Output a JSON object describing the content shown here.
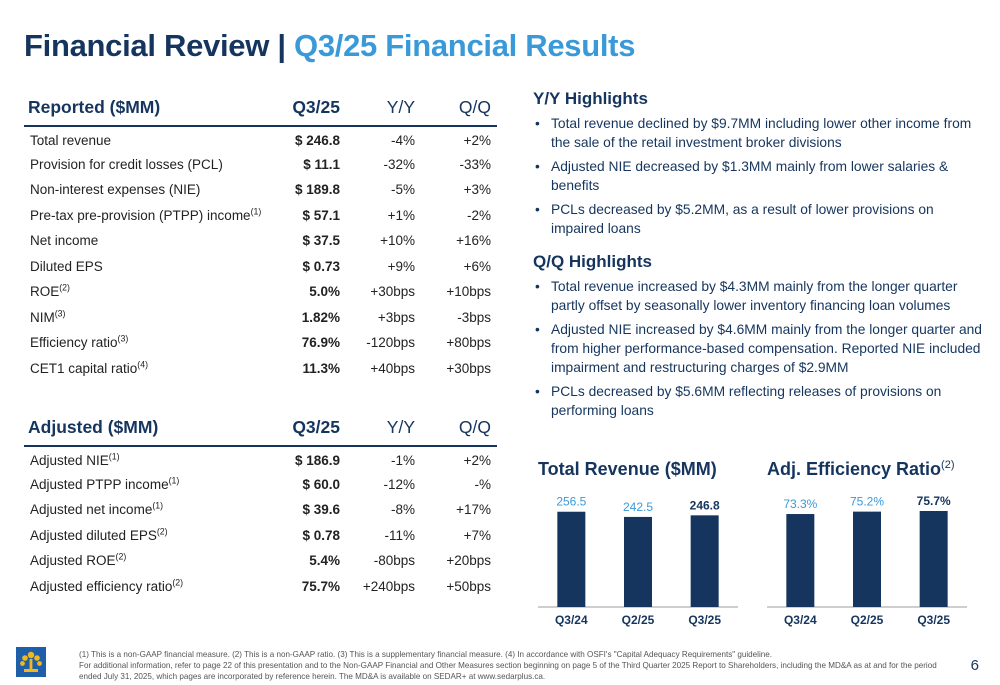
{
  "title": {
    "main": "Financial Review | ",
    "sub": "Q3/25 Financial Results"
  },
  "reported": {
    "header": [
      "Reported ($MM)",
      "Q3/25",
      "Y/Y",
      "Q/Q"
    ],
    "rows": [
      {
        "label": "Total revenue",
        "sup": "",
        "value": "$ 246.8",
        "yy": "-4%",
        "qq": "+2%"
      },
      {
        "label": "Provision for credit losses (PCL)",
        "sup": "",
        "value": "$ 11.1",
        "yy": "-32%",
        "qq": "-33%"
      },
      {
        "label": "Non-interest expenses (NIE)",
        "sup": "",
        "value": "$ 189.8",
        "yy": "-5%",
        "qq": "+3%"
      },
      {
        "label": "Pre-tax pre-provision (PTPP) income",
        "sup": "(1)",
        "value": "$ 57.1",
        "yy": "+1%",
        "qq": "-2%"
      },
      {
        "label": "Net income",
        "sup": "",
        "value": "$ 37.5",
        "yy": "+10%",
        "qq": "+16%"
      },
      {
        "label": "Diluted EPS",
        "sup": "",
        "value": "$ 0.73",
        "yy": "+9%",
        "qq": "+6%"
      },
      {
        "label": "ROE",
        "sup": "(2)",
        "value": "5.0%",
        "yy": "+30bps",
        "qq": "+10bps"
      },
      {
        "label": "NIM",
        "sup": "(3)",
        "value": "1.82%",
        "yy": "+3bps",
        "qq": "-3bps"
      },
      {
        "label": "Efficiency ratio",
        "sup": "(3)",
        "value": "76.9%",
        "yy": "-120bps",
        "qq": "+80bps"
      },
      {
        "label": "CET1 capital ratio",
        "sup": "(4)",
        "value": "11.3%",
        "yy": "+40bps",
        "qq": "+30bps"
      }
    ]
  },
  "adjusted": {
    "header": [
      "Adjusted ($MM)",
      "Q3/25",
      "Y/Y",
      "Q/Q"
    ],
    "rows": [
      {
        "label": "Adjusted NIE",
        "sup": "(1)",
        "value": "$ 186.9",
        "yy": "-1%",
        "qq": "+2%"
      },
      {
        "label": "Adjusted PTPP income",
        "sup": "(1)",
        "value": "$ 60.0",
        "yy": "-12%",
        "qq": "-%"
      },
      {
        "label": "Adjusted net income",
        "sup": "(1)",
        "value": "$ 39.6",
        "yy": "-8%",
        "qq": "+17%"
      },
      {
        "label": "Adjusted diluted EPS",
        "sup": "(2)",
        "value": "$ 0.78",
        "yy": "-11%",
        "qq": "+7%"
      },
      {
        "label": "Adjusted ROE",
        "sup": "(2)",
        "value": "5.4%",
        "yy": "-80bps",
        "qq": "+20bps"
      },
      {
        "label": "Adjusted efficiency ratio",
        "sup": "(2)",
        "value": "75.7%",
        "yy": "+240bps",
        "qq": "+50bps"
      }
    ]
  },
  "yy_highlights": {
    "title": "Y/Y Highlights",
    "items": [
      "Total revenue declined by $9.7MM including lower other income from the sale of the retail investment broker divisions",
      "Adjusted NIE decreased by $1.3MM mainly from lower salaries & benefits",
      "PCLs decreased by $5.2MM, as a result of lower provisions on impaired loans"
    ]
  },
  "qq_highlights": {
    "title": "Q/Q Highlights",
    "items": [
      "Total revenue increased by $4.3MM mainly from the longer quarter partly offset by seasonally lower inventory financing loan volumes",
      "Adjusted NIE increased by $4.6MM mainly from the longer quarter and from higher performance-based compensation. Reported NIE included impairment and restructuring charges of $2.9MM",
      "PCLs decreased by $5.6MM reflecting releases of provisions on performing loans"
    ]
  },
  "chart_data": [
    {
      "type": "bar",
      "title": "Total Revenue ($MM)",
      "title_sup": "",
      "categories": [
        "Q3/24",
        "Q2/25",
        "Q3/25"
      ],
      "values": [
        256.5,
        242.5,
        246.8
      ],
      "labels": [
        "256.5",
        "242.5",
        "246.8"
      ],
      "highlight_last": true,
      "bar_color": "#15355e",
      "ylim": [
        0,
        280
      ]
    },
    {
      "type": "bar",
      "title": "Adj. Efficiency Ratio",
      "title_sup": "(2)",
      "categories": [
        "Q3/24",
        "Q2/25",
        "Q3/25"
      ],
      "values": [
        73.3,
        75.2,
        75.7
      ],
      "labels": [
        "73.3%",
        "75.2%",
        "75.7%"
      ],
      "highlight_last": true,
      "bar_color": "#15355e",
      "ylim": [
        0,
        82
      ]
    }
  ],
  "footnote": {
    "line1": "(1) This is a non-GAAP financial measure. (2) This is a non-GAAP ratio. (3) This is a supplementary financial measure. (4) In accordance with OSFI's \"Capital Adequacy Requirements\" guideline.",
    "line2": "For additional information, refer to page 22 of this presentation and to the Non-GAAP Financial and Other Measures section beginning on page 5 of the Third Quarter 2025 Report to Shareholders, including the MD&A as at and for the period ended July 31, 2025, which pages are incorporated by reference herein. The MD&A is available on SEDAR+ at www.sedarplus.ca."
  },
  "page_number": "6",
  "colors": {
    "navy": "#15355e",
    "accent_blue": "#3a9ad9",
    "logo_gold": "#f2b71b",
    "logo_blue": "#1f5ea8"
  },
  "icons": {
    "logo": "laurentian-bank-logo-icon"
  }
}
